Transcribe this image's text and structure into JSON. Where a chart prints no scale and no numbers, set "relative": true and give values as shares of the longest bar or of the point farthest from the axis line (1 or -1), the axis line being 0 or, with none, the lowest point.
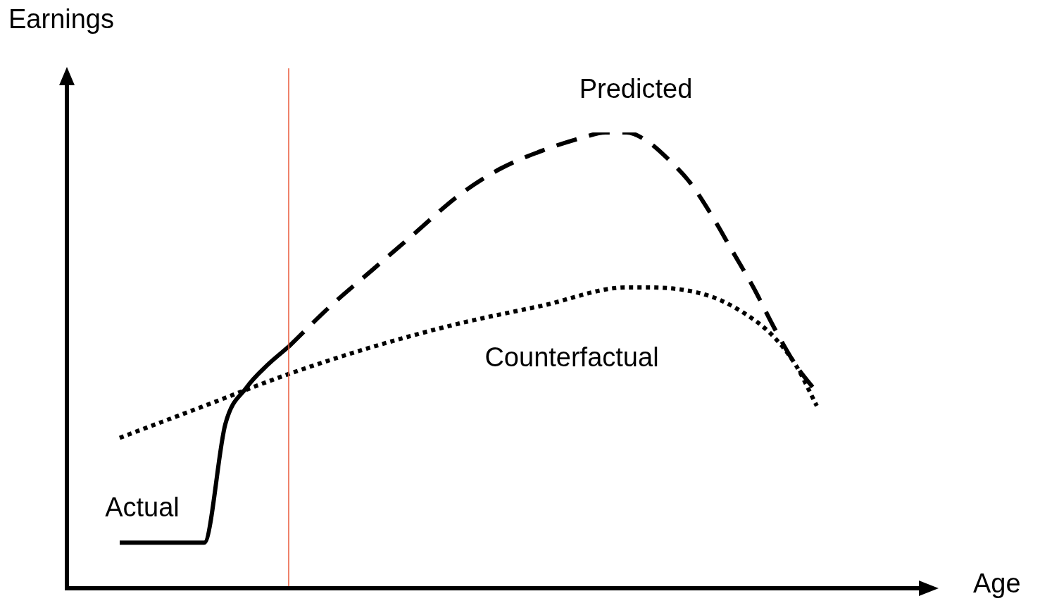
{
  "chart_data": {
    "type": "line",
    "relative": true,
    "xlabel": "Age",
    "ylabel": "Earnings",
    "categories": [
      null,
      null,
      null,
      null,
      null,
      null,
      null,
      null,
      null,
      null,
      null,
      null,
      null,
      null,
      null,
      null,
      null,
      null,
      null,
      null,
      null,
      null,
      null,
      null,
      null,
      null,
      null,
      null,
      null,
      null,
      null,
      null,
      null,
      null,
      null,
      null,
      null,
      null,
      null,
      null,
      null
    ],
    "series": [
      {
        "name": "Actual",
        "color": "#000000",
        "line_style": "solid",
        "values": [
          null,
          null,
          0.1,
          0.1,
          0.1,
          0.1,
          0.1,
          0.36,
          0.44,
          0.49,
          0.53,
          null,
          null,
          null,
          null,
          null,
          null,
          null,
          null,
          null,
          null,
          null,
          null,
          null,
          null,
          null,
          null,
          null,
          null,
          null,
          null,
          null,
          null,
          null,
          null,
          null,
          null,
          null,
          null,
          null,
          null
        ]
      },
      {
        "name": "Predicted",
        "color": "#000000",
        "line_style": "dashed",
        "values": [
          null,
          null,
          null,
          null,
          null,
          null,
          null,
          null,
          null,
          null,
          0.53,
          null,
          0.62,
          null,
          0.7,
          null,
          0.78,
          null,
          0.86,
          null,
          0.92,
          null,
          0.96,
          null,
          0.99,
          1.0,
          1.0,
          0.98,
          0.94,
          0.89,
          0.82,
          0.74,
          0.66,
          0.57,
          0.49,
          0.43,
          null,
          null,
          null,
          null,
          null
        ]
      },
      {
        "name": "Counterfactual",
        "color": "#000000",
        "line_style": "dotted",
        "values": [
          null,
          null,
          0.33,
          null,
          null,
          null,
          0.4,
          null,
          null,
          null,
          0.47,
          null,
          null,
          null,
          0.53,
          null,
          null,
          null,
          0.58,
          null,
          null,
          null,
          0.62,
          null,
          null,
          null,
          0.66,
          0.66,
          null,
          null,
          0.64,
          null,
          0.59,
          0.55,
          0.49,
          0.4,
          null,
          null,
          null,
          null,
          null
        ]
      }
    ],
    "legend": false
  }
}
